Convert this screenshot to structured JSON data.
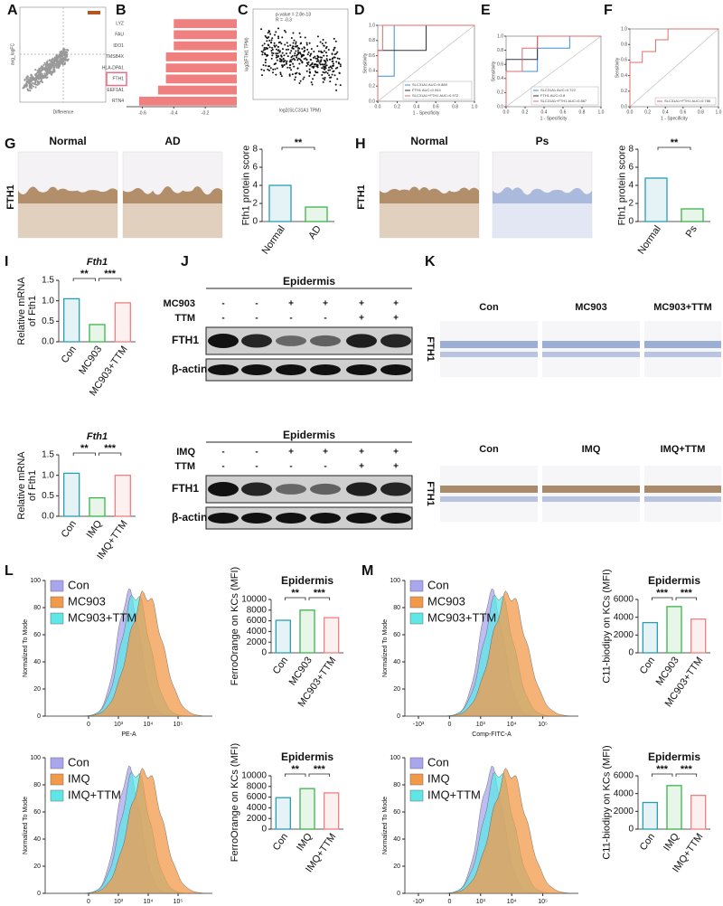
{
  "panel_labels": [
    "A",
    "B",
    "C",
    "D",
    "E",
    "F",
    "G",
    "H",
    "I",
    "J",
    "K",
    "L",
    "M"
  ],
  "panel_a": {
    "xlabel": "Difference",
    "ylabel": "avg_logFC"
  },
  "panel_c": {
    "annotations": [
      "p-value = 2.8e-13",
      "R = -0.3"
    ],
    "xlabel": "log2(SLC31A1 TPM)",
    "ylabel": "log2(FTH1 TPM)"
  },
  "histology": [
    {
      "conditions": [
        "Normal",
        "AD"
      ],
      "stain": "FTH1"
    },
    {
      "conditions": [
        "Normal",
        "Ps"
      ],
      "stain": "FTH1"
    },
    {
      "conditions": [
        "Con",
        "MC903",
        "MC903+TTM"
      ],
      "stain": "FTH1"
    },
    {
      "conditions": [
        "Con",
        "IMQ",
        "IMQ+TTM"
      ],
      "stain": "FTH1"
    }
  ],
  "blots": [
    {
      "title": "Epidermis",
      "treatments": [
        {
          "name": "MC903",
          "signs": [
            "-",
            "-",
            "+",
            "+",
            "+",
            "+"
          ]
        },
        {
          "name": "TTM",
          "signs": [
            "-",
            "-",
            "-",
            "-",
            "+",
            "+"
          ]
        }
      ],
      "bands": [
        "FTH1",
        "β-actin"
      ]
    },
    {
      "title": "Epidermis",
      "treatments": [
        {
          "name": "IMQ",
          "signs": [
            "-",
            "-",
            "+",
            "+",
            "+",
            "+"
          ]
        },
        {
          "name": "TTM",
          "signs": [
            "-",
            "-",
            "-",
            "-",
            "+",
            "+"
          ]
        }
      ],
      "bands": [
        "FTH1",
        "β-actin"
      ]
    }
  ],
  "flow": [
    {
      "legend": [
        "Con",
        "MC903",
        "MC903+TTM"
      ],
      "ylabel": "Normalized To Mode",
      "xlabel": "PE-A",
      "ylim": [
        0,
        100
      ],
      "yticks": [
        0,
        20,
        40,
        60,
        80,
        100
      ],
      "xticks": [
        "0",
        "10³",
        "10⁴",
        "10⁵"
      ]
    },
    {
      "legend": [
        "Con",
        "IMQ",
        "IMQ+TTM"
      ],
      "ylabel": "Normalized To Mode",
      "xlabel": "PE-A",
      "ylim": [
        0,
        100
      ],
      "yticks": [
        0,
        20,
        40,
        60,
        80,
        100
      ],
      "xticks": [
        "0",
        "10³",
        "10⁴",
        "10⁵"
      ]
    },
    {
      "legend": [
        "Con",
        "MC903",
        "MC903+TTM"
      ],
      "ylabel": "Normalized To Mode",
      "xlabel": "Comp-FITC-A",
      "ylim": [
        0,
        100
      ],
      "yticks": [
        0,
        20,
        40,
        60,
        80,
        100
      ],
      "xticks": [
        "-10³",
        "0",
        "10³",
        "10⁴",
        "10⁵"
      ]
    },
    {
      "legend": [
        "Con",
        "IMQ",
        "IMQ+TTM"
      ],
      "ylabel": "Normalized To Mode",
      "xlabel": "Comp-FITC-A",
      "ylim": [
        0,
        100
      ],
      "yticks": [
        0,
        20,
        40,
        60,
        80,
        100
      ],
      "xticks": [
        "-10³",
        "0",
        "10³",
        "10⁴",
        "10⁵"
      ]
    }
  ],
  "chart_data": [
    {
      "type": "hbar",
      "categories": [
        "LYZ",
        "FAU",
        "IDO1",
        "TMSB4X",
        "HLA-DPA1",
        "FTH1",
        "EEF1A1",
        "RTN4"
      ],
      "values": [
        -0.4,
        -0.4,
        -0.4,
        -0.45,
        -0.45,
        -0.45,
        -0.5,
        -0.62
      ],
      "color": "#f08080",
      "xlim": [
        -0.7,
        0
      ],
      "xticks": [
        -0.6,
        -0.4,
        -0.2
      ]
    },
    {
      "type": "roc",
      "xlabel": "1 - Specificity",
      "ylabel": "Sensitivity",
      "xlim": [
        0,
        1
      ],
      "ylim": [
        0,
        1
      ],
      "xticks": [
        {
          "value": 0,
          "label": "0.0"
        },
        0.2,
        0.4,
        0.6,
        0.8,
        {
          "value": 1,
          "label": "1.0"
        }
      ],
      "yticks": [
        {
          "value": 0,
          "label": "0.0"
        },
        0.2,
        0.4,
        0.6,
        0.8,
        {
          "value": 1,
          "label": "1.0"
        }
      ],
      "series": [
        {
          "name": "SLC31A1 AUC=0.889",
          "color": "#3d8fd1",
          "x": [
            0,
            0,
            0.17,
            0.17,
            1
          ],
          "values": [
            0,
            0.33,
            0.33,
            1,
            1
          ]
        },
        {
          "name": "FTH1 AUC=0.944",
          "color": "#333344",
          "x": [
            0,
            0,
            0.5,
            0.5,
            1
          ],
          "values": [
            0,
            0.67,
            0.67,
            1,
            1
          ]
        },
        {
          "name": "SLC31A1+FTH1 AUC=0.972",
          "color": "#e06c6c",
          "x": [
            0,
            0,
            0.05,
            0.05,
            1
          ],
          "values": [
            0,
            0.67,
            0.67,
            1,
            1
          ]
        }
      ]
    },
    {
      "type": "roc",
      "xlabel": "1 - Specificity",
      "ylabel": "Sensitivity",
      "xlim": [
        0,
        1
      ],
      "ylim": [
        0,
        1
      ],
      "xticks": [
        {
          "value": 0,
          "label": "0.0"
        },
        0.2,
        0.4,
        0.6,
        0.8,
        {
          "value": 1,
          "label": "1.0"
        }
      ],
      "yticks": [
        {
          "value": 0,
          "label": "0.0"
        },
        0.2,
        0.4,
        0.6,
        0.8,
        {
          "value": 1,
          "label": "1.0"
        }
      ],
      "series": [
        {
          "name": "SLC31A1 AUC=0.722",
          "color": "#3d8fd1",
          "x": [
            0,
            0,
            0.33,
            0.33,
            0.67,
            0.67,
            1
          ],
          "values": [
            0,
            0.5,
            0.5,
            0.83,
            0.83,
            1,
            1
          ]
        },
        {
          "name": "FTH1 AUC=0.8",
          "color": "#333344",
          "x": [
            0,
            0,
            0.33,
            0.33,
            1
          ],
          "values": [
            0,
            0.67,
            0.67,
            1,
            1
          ]
        },
        {
          "name": "SLC31A1+FTH1 AUC=0.867",
          "color": "#e06c6c",
          "x": [
            0,
            0,
            0.17,
            0.17,
            0.33,
            0.33,
            1
          ],
          "values": [
            0,
            0.5,
            0.5,
            0.83,
            0.83,
            1,
            1
          ]
        }
      ]
    },
    {
      "type": "roc",
      "xlabel": "1 - Specificity",
      "ylabel": "Sensitivity",
      "xlim": [
        0,
        1
      ],
      "ylim": [
        0,
        1
      ],
      "xticks": [
        {
          "value": 0,
          "label": "0.0"
        },
        0.2,
        0.4,
        0.6,
        0.8,
        {
          "value": 1,
          "label": "1.0"
        }
      ],
      "yticks": [
        {
          "value": 0,
          "label": "0.0"
        },
        0.2,
        0.4,
        0.6,
        0.8,
        {
          "value": 1,
          "label": "1.0"
        }
      ],
      "series": [
        {
          "name": "SLC31A1+FTH1 AUC=0.786",
          "color": "#e06c6c",
          "x": [
            0,
            0,
            0.14,
            0.14,
            0.29,
            0.29,
            0.43,
            0.43,
            0.71,
            0.71,
            1
          ],
          "values": [
            0,
            0.57,
            0.57,
            0.71,
            0.71,
            0.86,
            0.86,
            1,
            1,
            1,
            1
          ]
        }
      ]
    },
    {
      "type": "bar",
      "ylabel": [
        "Fth1 protein score"
      ],
      "categories": [
        "Normal",
        "AD"
      ],
      "values": [
        4.0,
        1.6
      ],
      "colors": [
        "#2a9db5",
        "#3cb44b"
      ],
      "ylim": [
        0,
        8
      ],
      "yticks": [
        0,
        2,
        4,
        6,
        8
      ],
      "annotations": [
        "**"
      ]
    },
    {
      "type": "bar",
      "ylabel": [
        "Fth1 protein score"
      ],
      "categories": [
        "Normal",
        "Ps"
      ],
      "values": [
        4.8,
        1.4
      ],
      "colors": [
        "#2a9db5",
        "#3cb44b"
      ],
      "ylim": [
        0,
        8
      ],
      "yticks": [
        0,
        2,
        4,
        6,
        8
      ],
      "annotations": [
        "**"
      ]
    },
    {
      "type": "bar",
      "title": "Fth1",
      "ylabel": [
        "Relative mRNA",
        "of Fth1"
      ],
      "categories": [
        "Con",
        "MC903",
        "MC903+TTM"
      ],
      "values": [
        1.05,
        0.42,
        0.95
      ],
      "colors": [
        "#2a9db5",
        "#3cb44b",
        "#f08080"
      ],
      "ylim": [
        0,
        1.5
      ],
      "yticks": [
        {
          "value": 0,
          "label": "0.0"
        },
        0.5,
        {
          "value": 1,
          "label": "1.0"
        },
        1.5
      ],
      "annotations": [
        "**",
        "***"
      ]
    },
    {
      "type": "bar",
      "title": "Fth1",
      "ylabel": [
        "Relative mRNA",
        "of Fth1"
      ],
      "categories": [
        "Con",
        "IMQ",
        "IMQ+TTM"
      ],
      "values": [
        1.05,
        0.45,
        1.0
      ],
      "colors": [
        "#2a9db5",
        "#3cb44b",
        "#f08080"
      ],
      "ylim": [
        0,
        1.5
      ],
      "yticks": [
        {
          "value": 0,
          "label": "0.0"
        },
        0.5,
        {
          "value": 1,
          "label": "1.0"
        },
        1.5
      ],
      "annotations": [
        "**",
        "***"
      ]
    },
    {
      "type": "bar",
      "title": "Epidermis",
      "ylabel": [
        "FerroOrange on KCs (MFI)"
      ],
      "categories": [
        "Con",
        "MC903",
        "MC903+TTM"
      ],
      "values": [
        6100,
        8000,
        6600
      ],
      "colors": [
        "#2a9db5",
        "#3cb44b",
        "#f08080"
      ],
      "ylim": [
        0,
        10000
      ],
      "yticks": [
        0,
        2000,
        4000,
        6000,
        8000,
        10000
      ],
      "annotations": [
        "**",
        "***"
      ]
    },
    {
      "type": "bar",
      "title": "Epidermis",
      "ylabel": [
        "FerroOrange on KCs (MFI)"
      ],
      "categories": [
        "Con",
        "IMQ",
        "IMQ+TTM"
      ],
      "values": [
        5900,
        7600,
        6800
      ],
      "colors": [
        "#2a9db5",
        "#3cb44b",
        "#f08080"
      ],
      "ylim": [
        0,
        10000
      ],
      "yticks": [
        0,
        2000,
        4000,
        6000,
        8000,
        10000
      ],
      "annotations": [
        "**",
        "***"
      ]
    },
    {
      "type": "bar",
      "title": "Epidermis",
      "ylabel": [
        "C11-biodipy on KCs (MFI)"
      ],
      "categories": [
        "Con",
        "MC903",
        "MC903+TTM"
      ],
      "values": [
        3400,
        5200,
        3800
      ],
      "colors": [
        "#2a9db5",
        "#3cb44b",
        "#f08080"
      ],
      "ylim": [
        0,
        6000
      ],
      "yticks": [
        0,
        2000,
        4000,
        6000
      ],
      "annotations": [
        "***",
        "***"
      ]
    },
    {
      "type": "bar",
      "title": "Epidermis",
      "ylabel": [
        "C11-biodipy on KCs (MFI)"
      ],
      "categories": [
        "Con",
        "IMQ",
        "IMQ+TTM"
      ],
      "values": [
        3000,
        4900,
        3800
      ],
      "colors": [
        "#2a9db5",
        "#3cb44b",
        "#f08080"
      ],
      "ylim": [
        0,
        6000
      ],
      "yticks": [
        0,
        2000,
        4000,
        6000
      ],
      "annotations": [
        "***",
        "***"
      ]
    }
  ]
}
